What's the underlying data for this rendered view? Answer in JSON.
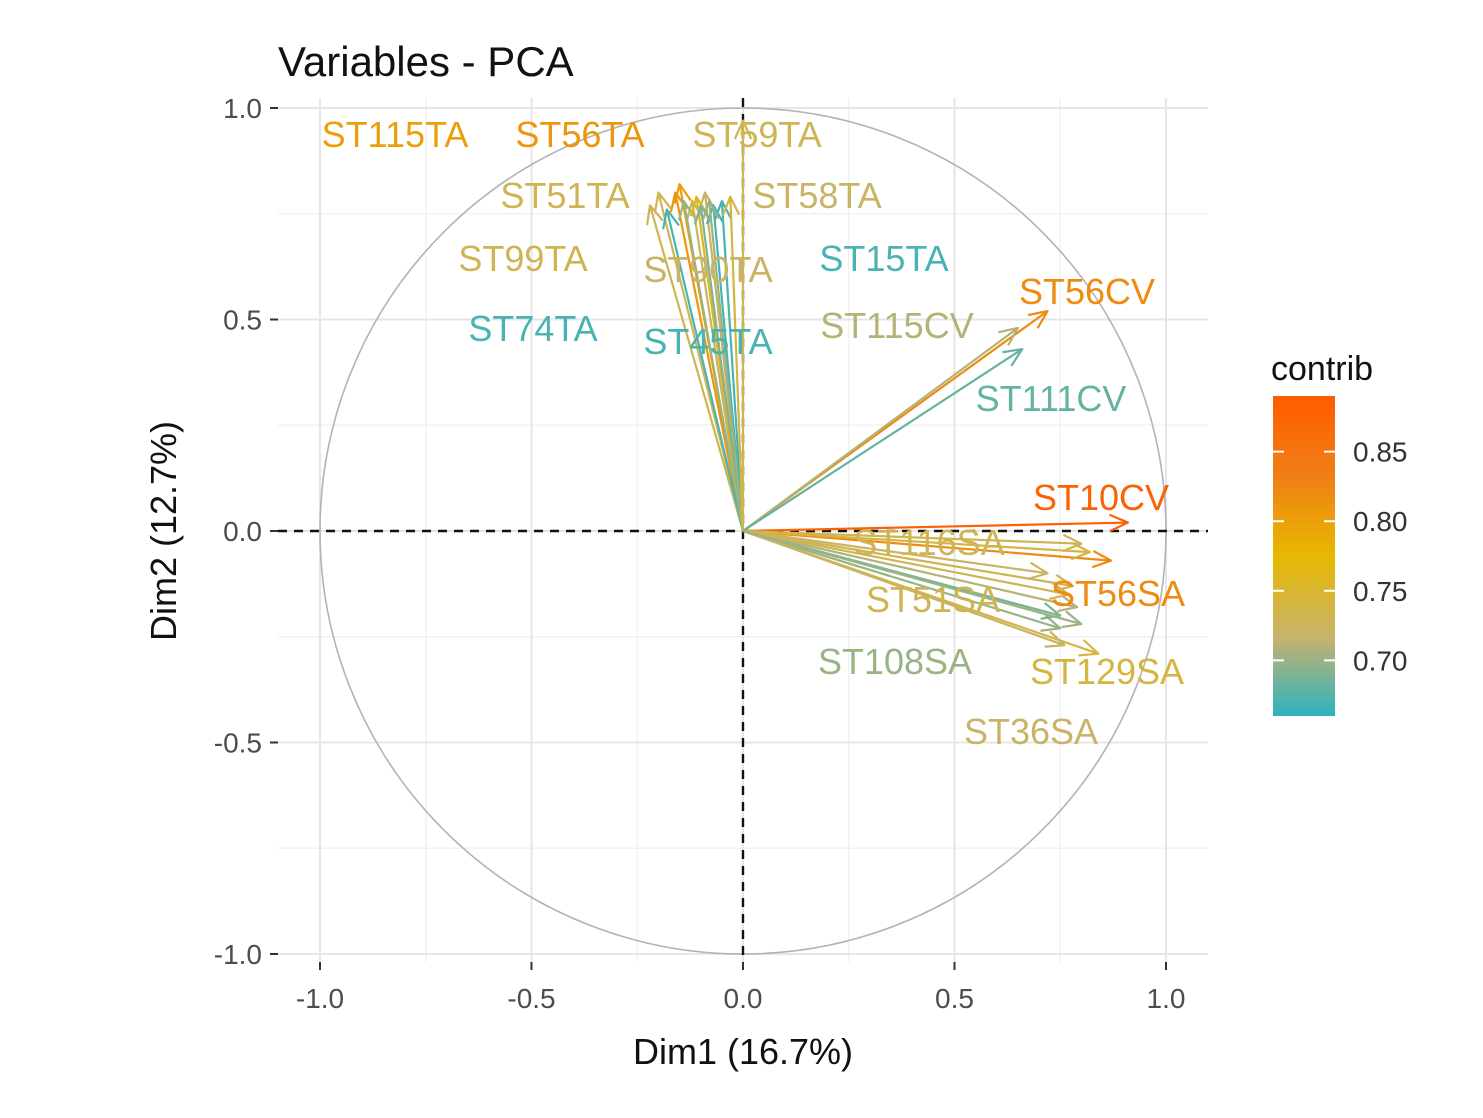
{
  "chart_data": {
    "type": "scatter",
    "subtype": "pca-variable-correlation-circle",
    "title": "Variables - PCA",
    "xlabel": "Dim1 (16.7%)",
    "ylabel": "Dim2 (12.7%)",
    "xlim": [
      -1.0,
      1.1
    ],
    "ylim": [
      -1.1,
      1.1
    ],
    "x_ticks": [
      "-1.0",
      "-0.5",
      "0.0",
      "0.5",
      "1.0"
    ],
    "y_ticks": [
      "-1.0",
      "-0.5",
      "0.0",
      "0.5",
      "1.0"
    ],
    "x_tick_values": [
      -1.0,
      -0.5,
      0.0,
      0.5,
      1.0
    ],
    "y_tick_values": [
      -1.0,
      -0.5,
      0.0,
      0.5,
      1.0
    ],
    "grid": true,
    "unit_circle": true,
    "reference_lines": "dashed at x=0 and y=0",
    "legend": {
      "title": "contrib",
      "position": "right",
      "min": 0.66,
      "max": 0.89,
      "ticks": [
        "0.85",
        "0.80",
        "0.75",
        "0.70"
      ],
      "tick_values": [
        0.85,
        0.8,
        0.75,
        0.7
      ],
      "gradient": [
        "#2eb3c0",
        "#c8b36a",
        "#e6b800",
        "#f07f15",
        "#ff5b00"
      ]
    },
    "variables": [
      {
        "name": "ST115TA",
        "x": -0.15,
        "y": 0.82,
        "contrib": 0.8,
        "labeled": true
      },
      {
        "name": "ST56TA",
        "x": -0.16,
        "y": 0.8,
        "contrib": 0.81,
        "labeled": true
      },
      {
        "name": "ST59TA",
        "x": 0.0,
        "y": 0.97,
        "contrib": 0.73,
        "labeled": true
      },
      {
        "name": "ST51TA",
        "x": -0.2,
        "y": 0.8,
        "contrib": 0.73,
        "labeled": true
      },
      {
        "name": "ST58TA",
        "x": -0.09,
        "y": 0.8,
        "contrib": 0.72,
        "labeled": true
      },
      {
        "name": "ST99TA",
        "x": -0.22,
        "y": 0.77,
        "contrib": 0.73,
        "labeled": true
      },
      {
        "name": "ST15TA",
        "x": -0.05,
        "y": 0.78,
        "contrib": 0.67,
        "labeled": true
      },
      {
        "name": "ST90TA",
        "x": -0.12,
        "y": 0.78,
        "contrib": 0.72,
        "labeled": true
      },
      {
        "name": "ST74TA",
        "x": -0.18,
        "y": 0.76,
        "contrib": 0.67,
        "labeled": true
      },
      {
        "name": "ST45TA",
        "x": -0.07,
        "y": 0.77,
        "contrib": 0.67,
        "labeled": true
      },
      {
        "name": "",
        "x": -0.14,
        "y": 0.78,
        "contrib": 0.7,
        "labeled": false
      },
      {
        "name": "",
        "x": -0.11,
        "y": 0.79,
        "contrib": 0.76,
        "labeled": false
      },
      {
        "name": "",
        "x": -0.1,
        "y": 0.77,
        "contrib": 0.69,
        "labeled": false
      },
      {
        "name": "",
        "x": -0.08,
        "y": 0.78,
        "contrib": 0.7,
        "labeled": false
      },
      {
        "name": "",
        "x": -0.03,
        "y": 0.79,
        "contrib": 0.74,
        "labeled": false
      },
      {
        "name": "ST56CV",
        "x": 0.72,
        "y": 0.52,
        "contrib": 0.82,
        "labeled": true
      },
      {
        "name": "ST115CV",
        "x": 0.65,
        "y": 0.48,
        "contrib": 0.71,
        "labeled": true
      },
      {
        "name": "ST111CV",
        "x": 0.66,
        "y": 0.43,
        "contrib": 0.68,
        "labeled": true
      },
      {
        "name": "ST10CV",
        "x": 0.91,
        "y": 0.02,
        "contrib": 0.88,
        "labeled": true
      },
      {
        "name": "ST116SA",
        "x": 0.8,
        "y": -0.03,
        "contrib": 0.73,
        "labeled": true
      },
      {
        "name": "ST56SA",
        "x": 0.87,
        "y": -0.07,
        "contrib": 0.82,
        "labeled": true
      },
      {
        "name": "ST51SA",
        "x": 0.78,
        "y": -0.13,
        "contrib": 0.73,
        "labeled": true
      },
      {
        "name": "ST108SA",
        "x": 0.75,
        "y": -0.23,
        "contrib": 0.7,
        "labeled": true
      },
      {
        "name": "ST129SA",
        "x": 0.84,
        "y": -0.29,
        "contrib": 0.74,
        "labeled": true
      },
      {
        "name": "ST36SA",
        "x": 0.76,
        "y": -0.27,
        "contrib": 0.72,
        "labeled": true
      },
      {
        "name": "",
        "x": 0.82,
        "y": -0.05,
        "contrib": 0.74,
        "labeled": false
      },
      {
        "name": "",
        "x": 0.79,
        "y": -0.18,
        "contrib": 0.71,
        "labeled": false
      },
      {
        "name": "",
        "x": 0.72,
        "y": -0.1,
        "contrib": 0.72,
        "labeled": false
      },
      {
        "name": "",
        "x": 0.75,
        "y": -0.2,
        "contrib": 0.69,
        "labeled": false
      },
      {
        "name": "",
        "x": 0.77,
        "y": -0.15,
        "contrib": 0.73,
        "labeled": false
      },
      {
        "name": "",
        "x": 0.8,
        "y": -0.22,
        "contrib": 0.7,
        "labeled": false
      }
    ]
  }
}
